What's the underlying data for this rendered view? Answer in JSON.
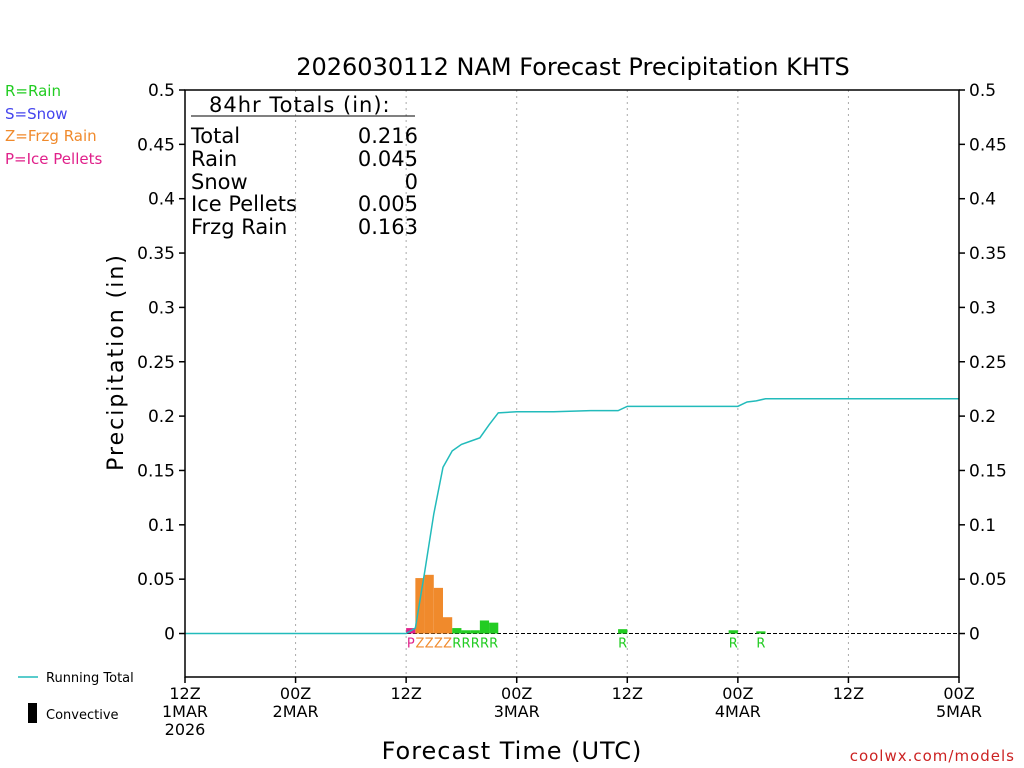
{
  "chart_data": {
    "type": "bar",
    "title": "2026030112 NAM Forecast Precipitation KHTS",
    "xlabel": "Forecast Time (UTC)",
    "ylabel": "Precipitation (in)",
    "ylim": [
      -0.04,
      0.5
    ],
    "xlim_hours": [
      0,
      84
    ],
    "y_ticks": [
      0,
      0.05,
      0.1,
      0.15,
      0.2,
      0.25,
      0.3,
      0.35,
      0.4,
      0.45,
      0.5
    ],
    "y_tick_labels": [
      "0",
      "0.05",
      "0.1",
      "0.15",
      "0.2",
      "0.25",
      "0.3",
      "0.35",
      "0.4",
      "0.45",
      "0.5"
    ],
    "x_ticks": [
      {
        "hour": 0,
        "line1": "12Z",
        "line2": "1MAR",
        "line3": "2026"
      },
      {
        "hour": 12,
        "line1": "00Z",
        "line2": "2MAR",
        "line3": ""
      },
      {
        "hour": 24,
        "line1": "12Z",
        "line2": "",
        "line3": ""
      },
      {
        "hour": 36,
        "line1": "00Z",
        "line2": "3MAR",
        "line3": ""
      },
      {
        "hour": 48,
        "line1": "12Z",
        "line2": "",
        "line3": ""
      },
      {
        "hour": 60,
        "line1": "00Z",
        "line2": "4MAR",
        "line3": ""
      },
      {
        "hour": 72,
        "line1": "12Z",
        "line2": "",
        "line3": ""
      },
      {
        "hour": 84,
        "line1": "00Z",
        "line2": "5MAR",
        "line3": ""
      }
    ],
    "legend_types": [
      {
        "label": "R=Rain",
        "color": "#22cc22"
      },
      {
        "label": "S=Snow",
        "color": "#4444ee"
      },
      {
        "label": "Z=Frzg Rain",
        "color": "#f08a2c"
      },
      {
        "label": "P=Ice Pellets",
        "color": "#e0208a"
      }
    ],
    "totals_box": {
      "heading": "84hr Totals (in):",
      "rows": [
        {
          "label": "Total",
          "value": "0.216"
        },
        {
          "label": "Rain",
          "value": "0.045"
        },
        {
          "label": "Snow",
          "value": "0"
        },
        {
          "label": "Ice Pellets",
          "value": "0.005"
        },
        {
          "label": "Frzg Rain",
          "value": "0.163"
        }
      ]
    },
    "series": [
      {
        "name": "Hourly precipitation",
        "bars": [
          {
            "hour": 25,
            "value": 0.005,
            "type": "P"
          },
          {
            "hour": 26,
            "value": 0.051,
            "type": "Z"
          },
          {
            "hour": 27,
            "value": 0.054,
            "type": "Z"
          },
          {
            "hour": 28,
            "value": 0.042,
            "type": "Z"
          },
          {
            "hour": 29,
            "value": 0.015,
            "type": "Z"
          },
          {
            "hour": 30,
            "value": 0.005,
            "type": "R"
          },
          {
            "hour": 31,
            "value": 0.003,
            "type": "R"
          },
          {
            "hour": 32,
            "value": 0.003,
            "type": "R"
          },
          {
            "hour": 33,
            "value": 0.012,
            "type": "R"
          },
          {
            "hour": 34,
            "value": 0.01,
            "type": "R"
          },
          {
            "hour": 48,
            "value": 0.004,
            "type": "R"
          },
          {
            "hour": 60,
            "value": 0.003,
            "type": "R"
          },
          {
            "hour": 63,
            "value": 0.002,
            "type": "R"
          }
        ]
      },
      {
        "name": "Running Total",
        "color": "#22bbbb",
        "points": [
          [
            0,
            0
          ],
          [
            24,
            0
          ],
          [
            25,
            0.005
          ],
          [
            26,
            0.056
          ],
          [
            27,
            0.11
          ],
          [
            28,
            0.153
          ],
          [
            29,
            0.168
          ],
          [
            30,
            0.174
          ],
          [
            31,
            0.177
          ],
          [
            32,
            0.18
          ],
          [
            33,
            0.192
          ],
          [
            34,
            0.203
          ],
          [
            36,
            0.204
          ],
          [
            40,
            0.204
          ],
          [
            44,
            0.205
          ],
          [
            47,
            0.205
          ],
          [
            48,
            0.209
          ],
          [
            54,
            0.209
          ],
          [
            60,
            0.209
          ],
          [
            61,
            0.213
          ],
          [
            62,
            0.214
          ],
          [
            63,
            0.216
          ],
          [
            72,
            0.216
          ],
          [
            84,
            0.216
          ]
        ]
      }
    ],
    "series_legend": [
      {
        "label": "Running Total",
        "kind": "line",
        "color": "#22bbbb"
      },
      {
        "label": "Convective",
        "kind": "bar",
        "color": "#000000"
      }
    ],
    "credit": "coolwx.com/models"
  },
  "colors": {
    "rain": "#22cc22",
    "snow": "#4444ee",
    "frzg_rain": "#f08a2c",
    "ice_pellets": "#e0208a",
    "running_total": "#22bbbb",
    "credit": "#cc2222"
  }
}
